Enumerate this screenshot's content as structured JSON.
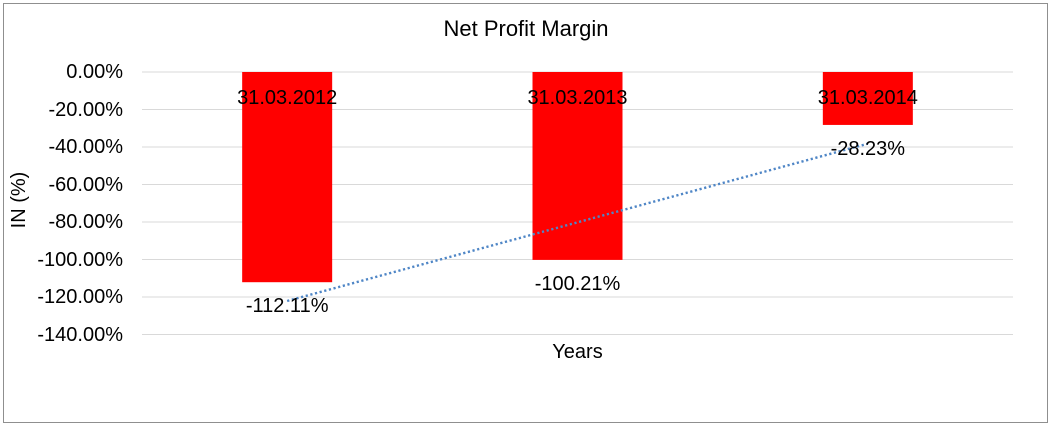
{
  "chart_data": {
    "type": "bar",
    "title": "Net Profit Margin",
    "xlabel": "Years",
    "ylabel": "IN (%)",
    "categories": [
      "31.03.2012",
      "31.03.2013",
      "31.03.2014"
    ],
    "series": [
      {
        "name": "Net Profit Margin",
        "values": [
          -112.11,
          -100.21,
          -28.23
        ]
      }
    ],
    "data_labels": [
      "-112.11%",
      "-100.21%",
      "-28.23%"
    ],
    "y_ticks": [
      {
        "label": "0.00%",
        "value": 0
      },
      {
        "label": "-20.00%",
        "value": -20
      },
      {
        "label": "-40.00%",
        "value": -40
      },
      {
        "label": "-60.00%",
        "value": -60
      },
      {
        "label": "-80.00%",
        "value": -80
      },
      {
        "label": "-100.00%",
        "value": -100
      },
      {
        "label": "-120.00%",
        "value": -120
      },
      {
        "label": "-140.00%",
        "value": -140
      }
    ],
    "ylim": [
      -140,
      0
    ],
    "grid": true,
    "legend": "none",
    "trendline": {
      "type": "linear",
      "style": "dotted",
      "endpoint_values": [
        -122.12,
        -38.24
      ]
    },
    "colors": {
      "bar": "#FF0000",
      "trendline": "#4F86C6",
      "gridline": "#D9D9D9",
      "text": "#000000",
      "background": "#FFFFFF",
      "frame_border": "#8F8F8F"
    }
  }
}
